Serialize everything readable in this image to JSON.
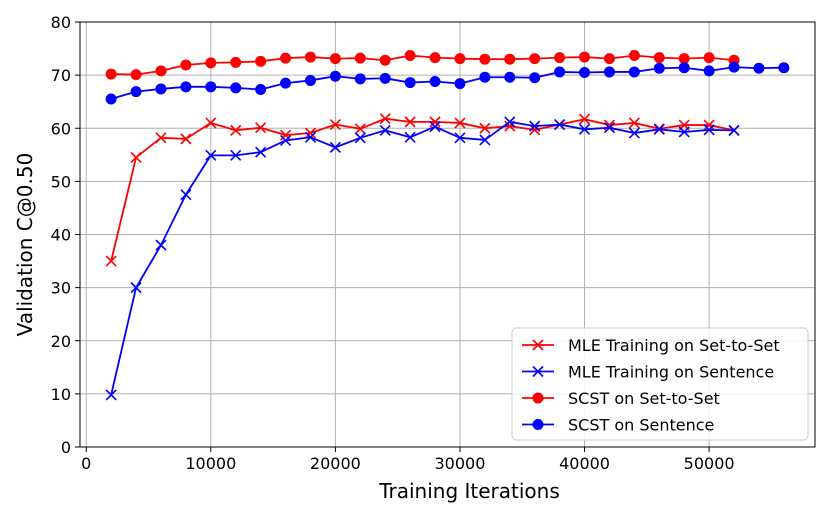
{
  "chart_data": {
    "type": "line",
    "title": "",
    "xlabel": "Training Iterations",
    "ylabel": "Validation C@0.50",
    "xlim": [
      -500,
      58500
    ],
    "ylim": [
      0,
      80
    ],
    "xticks": [
      0,
      10000,
      20000,
      30000,
      40000,
      50000
    ],
    "xtick_labels": [
      "0",
      "10000",
      "20000",
      "30000",
      "40000",
      "50000"
    ],
    "yticks": [
      0,
      10,
      20,
      30,
      40,
      50,
      60,
      70,
      80
    ],
    "ytick_labels": [
      "0",
      "10",
      "20",
      "30",
      "40",
      "50",
      "60",
      "70",
      "80"
    ],
    "grid": true,
    "legend_position": "lower-right",
    "series": [
      {
        "name": "MLE Training on Set-to-Set",
        "color": "#ff0000",
        "marker": "x",
        "x": [
          2000,
          4000,
          6000,
          8000,
          10000,
          12000,
          14000,
          16000,
          18000,
          20000,
          22000,
          24000,
          26000,
          28000,
          30000,
          32000,
          34000,
          36000,
          38000,
          40000,
          42000,
          44000,
          46000,
          48000,
          50000,
          52000
        ],
        "y": [
          35.0,
          54.5,
          58.2,
          58.0,
          61.0,
          59.6,
          60.1,
          58.7,
          59.1,
          60.7,
          59.9,
          61.8,
          61.2,
          61.2,
          61.0,
          60.0,
          60.4,
          59.7,
          60.7,
          61.7,
          60.6,
          61.0,
          59.9,
          60.6,
          60.6,
          59.6
        ]
      },
      {
        "name": "MLE Training on Sentence",
        "color": "#0000ff",
        "marker": "x",
        "x": [
          2000,
          4000,
          6000,
          8000,
          10000,
          12000,
          14000,
          16000,
          18000,
          20000,
          22000,
          24000,
          26000,
          28000,
          30000,
          32000,
          34000,
          36000,
          38000,
          40000,
          42000,
          44000,
          46000,
          48000,
          50000,
          52000
        ],
        "y": [
          9.8,
          30.0,
          38.0,
          47.5,
          54.9,
          54.9,
          55.5,
          57.7,
          58.3,
          56.4,
          58.2,
          59.6,
          58.3,
          60.3,
          58.2,
          57.8,
          61.2,
          60.4,
          60.7,
          59.8,
          60.1,
          59.1,
          59.8,
          59.3,
          59.7,
          59.6
        ]
      },
      {
        "name": "SCST on Set-to-Set",
        "color": "#ff0000",
        "marker": "o",
        "x": [
          2000,
          4000,
          6000,
          8000,
          10000,
          12000,
          14000,
          16000,
          18000,
          20000,
          22000,
          24000,
          26000,
          28000,
          30000,
          32000,
          34000,
          36000,
          38000,
          40000,
          42000,
          44000,
          46000,
          48000,
          50000,
          52000
        ],
        "y": [
          70.2,
          70.1,
          70.8,
          71.9,
          72.3,
          72.4,
          72.6,
          73.2,
          73.4,
          73.1,
          73.2,
          72.8,
          73.7,
          73.3,
          73.1,
          73.0,
          73.0,
          73.1,
          73.3,
          73.4,
          73.1,
          73.7,
          73.3,
          73.1,
          73.3,
          72.8
        ]
      },
      {
        "name": "SCST on Sentence",
        "color": "#0000ff",
        "marker": "o",
        "x": [
          2000,
          4000,
          6000,
          8000,
          10000,
          12000,
          14000,
          16000,
          18000,
          20000,
          22000,
          24000,
          26000,
          28000,
          30000,
          32000,
          34000,
          36000,
          38000,
          40000,
          42000,
          44000,
          46000,
          48000,
          50000,
          52000,
          54000,
          56000
        ],
        "y": [
          65.5,
          66.9,
          67.4,
          67.8,
          67.8,
          67.6,
          67.3,
          68.5,
          69.0,
          69.8,
          69.3,
          69.4,
          68.6,
          68.8,
          68.4,
          69.6,
          69.6,
          69.5,
          70.6,
          70.5,
          70.6,
          70.6,
          71.3,
          71.4,
          70.8,
          71.5,
          71.3,
          71.4
        ]
      }
    ]
  }
}
